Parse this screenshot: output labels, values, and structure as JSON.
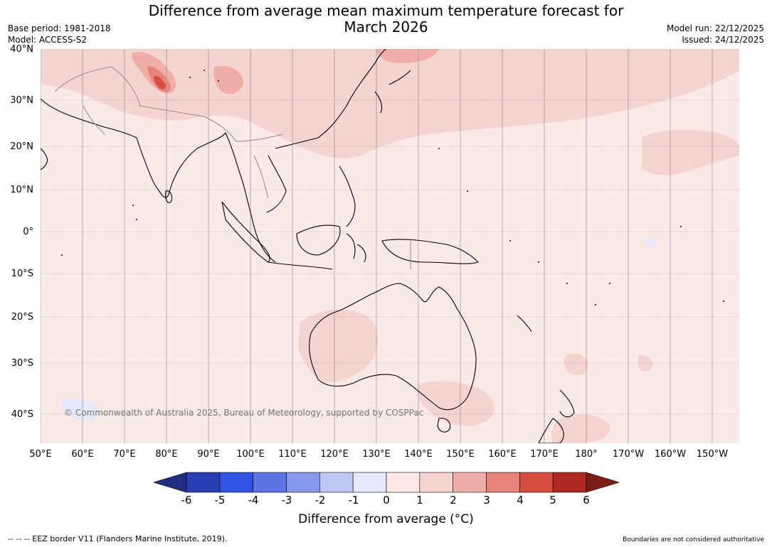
{
  "title_line1": "Difference from average mean maximum temperature forecast for",
  "title_line2": "March 2026",
  "meta_left": {
    "base_period": "Base period: 1981-2018",
    "model": "Model: ACCESS-S2"
  },
  "meta_right": {
    "model_run": "Model run: 22/12/2025",
    "issued": "Issued: 24/12/2025"
  },
  "map": {
    "lat_labels": [
      "40°N",
      "30°N",
      "20°N",
      "10°N",
      "0°",
      "10°S",
      "20°S",
      "30°S",
      "40°S"
    ],
    "lon_labels": [
      "50°E",
      "60°E",
      "70°E",
      "80°E",
      "90°E",
      "100°E",
      "110°E",
      "120°E",
      "130°E",
      "140°E",
      "150°E",
      "160°E",
      "170°E",
      "180°",
      "170°W",
      "160°W",
      "150°W"
    ],
    "copyright": "© Commonwealth of Australia 2025, Bureau of Meteorology, supported by COSPPac",
    "base_color": "#fbe9e7"
  },
  "colorbar": {
    "colors": [
      "#1f2e82",
      "#2a3eb3",
      "#3152e2",
      "#5e73e6",
      "#8797ec",
      "#bfc6f4",
      "#e6e9fb",
      "#fce9e7",
      "#f5d3d0",
      "#efaea8",
      "#e8837b",
      "#d94c40",
      "#b02a22",
      "#7c1d17"
    ],
    "ticks": [
      "-6",
      "-5",
      "-4",
      "-3",
      "-2",
      "-1",
      "0",
      "1",
      "2",
      "3",
      "4",
      "5",
      "6"
    ],
    "label": "Difference from average (°C)"
  },
  "footer_left": "--  --  -- EEZ border V11 (Flanders Marine Institute, 2019).",
  "footer_right": "Boundaries are not considered authoritative"
}
